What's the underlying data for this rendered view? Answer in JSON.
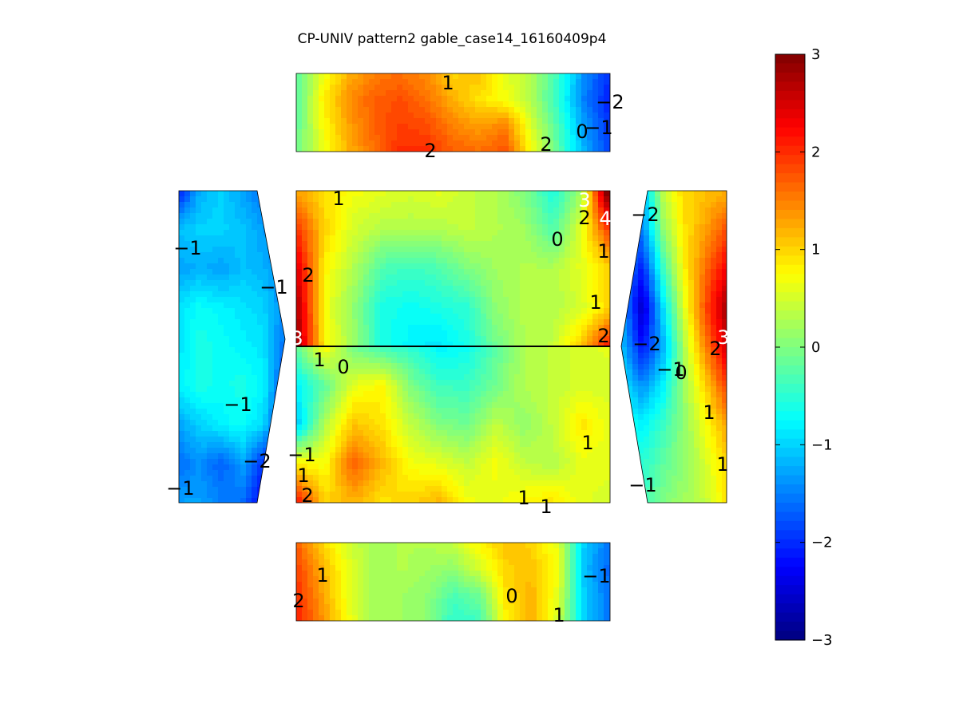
{
  "chart_data": {
    "type": "heatmap",
    "title": "CP-UNIV pattern2 gable_case14_16160409p4",
    "colormap": "jet",
    "colorbar": {
      "clim": [
        -3,
        3
      ],
      "ticks": [
        3,
        2,
        1,
        0,
        -1,
        -2,
        -3
      ],
      "tick_labels": [
        "3",
        "2",
        "1",
        "0",
        "−1",
        "−2",
        "−3"
      ]
    },
    "panels": [
      {
        "name": "top-wall",
        "grid_values": [
          [
            -0.2,
            0.6,
            1.2,
            1.5,
            1.6,
            1.4,
            1.0,
            1.1,
            0.6,
            0.3,
            -0.4,
            -1.4,
            -2.0
          ],
          [
            -0.3,
            0.8,
            1.4,
            1.7,
            1.8,
            1.6,
            1.2,
            0.9,
            0.7,
            0.3,
            -0.5,
            -1.5,
            -2.1
          ],
          [
            -0.2,
            0.7,
            1.3,
            1.7,
            1.9,
            1.8,
            1.5,
            1.3,
            1.5,
            0.5,
            -0.3,
            -1.3,
            -2.0
          ],
          [
            -0.1,
            0.6,
            1.2,
            1.6,
            2.0,
            2.0,
            1.7,
            1.6,
            1.8,
            0.7,
            -0.2,
            -1.2,
            -1.9
          ]
        ]
      },
      {
        "name": "left-roof",
        "grid_values": [
          [
            -2.1,
            -1.2,
            -1.0,
            -1.3,
            -1.6,
            -1.9
          ],
          [
            -1.1,
            -1.0,
            -1.0,
            -1.1,
            -1.3,
            -1.6
          ],
          [
            -1.3,
            -1.2,
            -1.3,
            -1.1,
            -1.2,
            -1.5
          ],
          [
            -0.9,
            -0.7,
            -0.8,
            -0.9,
            -1.0,
            -1.5
          ],
          [
            -0.9,
            -0.6,
            -0.7,
            -0.8,
            -0.9,
            -1.6
          ],
          [
            -0.8,
            -0.6,
            -0.7,
            -0.6,
            -0.8,
            -1.9
          ],
          [
            -1.3,
            -1.0,
            -0.8,
            -0.7,
            -1.0,
            -2.2
          ],
          [
            -1.6,
            -1.4,
            -1.7,
            -1.3,
            -2.0,
            -2.6
          ],
          [
            -1.3,
            -1.3,
            -1.5,
            -1.6,
            -2.3,
            -2.8
          ]
        ]
      },
      {
        "name": "roof-upper",
        "grid_values": [
          [
            1.3,
            0.9,
            0.7,
            0.6,
            0.5,
            0.6,
            0.4,
            0.3,
            0.0,
            -0.6,
            0.2,
            3.4
          ],
          [
            2.0,
            1.0,
            0.5,
            0.3,
            0.3,
            0.3,
            0.4,
            0.3,
            0.2,
            -0.3,
            0.6,
            2.0
          ],
          [
            2.5,
            0.8,
            0.3,
            -0.3,
            -0.4,
            -0.3,
            0.0,
            0.2,
            0.3,
            0.3,
            0.6,
            1.0
          ],
          [
            2.8,
            0.7,
            0.1,
            -0.6,
            -0.7,
            -0.6,
            -0.5,
            0.1,
            0.3,
            0.3,
            0.5,
            1.0
          ],
          [
            2.9,
            0.8,
            0.2,
            -0.6,
            -0.8,
            -0.9,
            -0.6,
            -0.1,
            0.3,
            0.4,
            1.1,
            2.2
          ]
        ]
      },
      {
        "name": "roof-lower",
        "grid_values": [
          [
            -0.2,
            0.8,
            -0.1,
            -0.4,
            -0.5,
            -0.8,
            -0.7,
            -0.2,
            0.3,
            0.4,
            0.5,
            0.6
          ],
          [
            -0.8,
            -0.2,
            0.6,
            0.8,
            0.0,
            -0.4,
            -0.4,
            -0.1,
            0.3,
            0.4,
            0.5,
            0.5
          ],
          [
            -1.1,
            0.3,
            1.1,
            0.9,
            0.4,
            0.0,
            -0.1,
            0.4,
            0.1,
            0.4,
            0.9,
            0.6
          ],
          [
            0.8,
            0.7,
            1.7,
            1.2,
            0.7,
            0.6,
            0.4,
            0.7,
            0.4,
            0.3,
            0.6,
            0.6
          ],
          [
            2.2,
            1.0,
            1.2,
            0.9,
            1.0,
            1.2,
            0.7,
            0.6,
            0.8,
            0.9,
            0.6,
            0.5
          ]
        ]
      },
      {
        "name": "right-roof",
        "grid_values": [
          [
            -1.9,
            -1.2,
            0.4,
            1.0,
            1.1,
            1.2
          ],
          [
            -1.6,
            -1.5,
            0.1,
            0.9,
            1.3,
            1.8
          ],
          [
            -1.3,
            -2.1,
            -0.4,
            0.8,
            1.6,
            2.3
          ],
          [
            -1.2,
            -2.6,
            -0.9,
            0.6,
            1.8,
            2.8
          ],
          [
            -1.1,
            -2.2,
            -1.2,
            0.3,
            1.5,
            2.5
          ],
          [
            -0.8,
            -1.4,
            -0.8,
            0.2,
            1.0,
            1.9
          ],
          [
            -0.5,
            -0.8,
            -0.4,
            0.1,
            0.7,
            1.3
          ],
          [
            -0.6,
            -0.5,
            -0.2,
            0.1,
            0.5,
            1.0
          ],
          [
            -0.9,
            -0.4,
            0.0,
            0.2,
            0.4,
            0.9
          ]
        ]
      },
      {
        "name": "bottom-wall",
        "grid_values": [
          [
            1.7,
            1.0,
            0.5,
            0.2,
            0.3,
            0.3,
            0.4,
            0.8,
            1.1,
            1.0,
            0.6,
            -1.0,
            -1.6
          ],
          [
            1.9,
            1.2,
            0.6,
            0.2,
            0.3,
            0.2,
            0.1,
            0.5,
            1.0,
            1.1,
            0.7,
            -1.1,
            -1.7
          ],
          [
            2.0,
            1.3,
            0.6,
            0.2,
            0.2,
            0.1,
            -0.3,
            -0.1,
            0.9,
            1.2,
            0.6,
            -1.0,
            -1.6
          ],
          [
            2.1,
            1.4,
            0.7,
            0.2,
            0.2,
            0.1,
            -0.5,
            -0.4,
            0.8,
            1.2,
            0.5,
            -1.0,
            -1.6
          ]
        ]
      }
    ],
    "contour_labels": [
      {
        "text": "1",
        "panel": "top-wall"
      },
      {
        "text": "−2",
        "panel": "top-wall"
      },
      {
        "text": "0",
        "panel": "top-wall"
      },
      {
        "text": "−1",
        "panel": "top-wall"
      },
      {
        "text": "2",
        "panel": "top-wall"
      },
      {
        "text": "2",
        "panel": "top-wall"
      },
      {
        "text": "1",
        "panel": "roof-upper"
      },
      {
        "text": "3",
        "panel": "roof-upper"
      },
      {
        "text": "2",
        "panel": "roof-upper"
      },
      {
        "text": "4",
        "panel": "roof-upper"
      },
      {
        "text": "0",
        "panel": "roof-upper"
      },
      {
        "text": "1",
        "panel": "roof-upper"
      },
      {
        "text": "2",
        "panel": "roof-upper"
      },
      {
        "text": "1",
        "panel": "roof-upper"
      },
      {
        "text": "3",
        "panel": "roof-upper"
      },
      {
        "text": "2",
        "panel": "roof-upper"
      },
      {
        "text": "1",
        "panel": "roof-lower"
      },
      {
        "text": "0",
        "panel": "roof-lower"
      },
      {
        "text": "−1",
        "panel": "roof-lower"
      },
      {
        "text": "1",
        "panel": "roof-lower"
      },
      {
        "text": "2",
        "panel": "roof-lower"
      },
      {
        "text": "1",
        "panel": "roof-lower"
      },
      {
        "text": "1",
        "panel": "roof-lower"
      },
      {
        "text": "1",
        "panel": "roof-lower"
      },
      {
        "text": "−1",
        "panel": "left-roof"
      },
      {
        "text": "−1",
        "panel": "left-roof"
      },
      {
        "text": "−1",
        "panel": "left-roof"
      },
      {
        "text": "−2",
        "panel": "left-roof"
      },
      {
        "text": "−1",
        "panel": "left-roof"
      },
      {
        "text": "−2",
        "panel": "right-roof"
      },
      {
        "text": "−2",
        "panel": "right-roof"
      },
      {
        "text": "−1",
        "panel": "right-roof"
      },
      {
        "text": "0",
        "panel": "right-roof"
      },
      {
        "text": "3",
        "panel": "right-roof"
      },
      {
        "text": "2",
        "panel": "right-roof"
      },
      {
        "text": "1",
        "panel": "right-roof"
      },
      {
        "text": "1",
        "panel": "right-roof"
      },
      {
        "text": "−1",
        "panel": "right-roof"
      },
      {
        "text": "−1",
        "panel": "bottom-wall"
      },
      {
        "text": "1",
        "panel": "bottom-wall"
      },
      {
        "text": "2",
        "panel": "bottom-wall"
      },
      {
        "text": "0",
        "panel": "bottom-wall"
      },
      {
        "text": "1",
        "panel": "bottom-wall"
      }
    ]
  }
}
